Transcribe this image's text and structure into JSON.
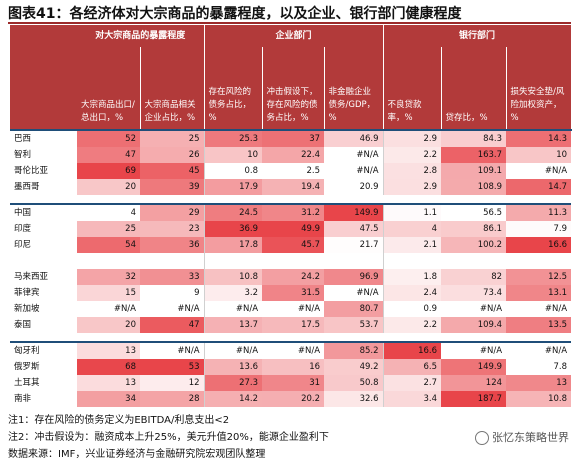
{
  "title": "图表41：各经济体对大宗商品的暴露程度，以及企业、银行部门健康程度",
  "groups": [
    {
      "label": "对大宗商品的暴露程度"
    },
    {
      "label": "企业部门"
    },
    {
      "label": "银行部门"
    }
  ],
  "columns": [
    "大宗商品出口/总出口，%",
    "大宗商品相关企业占比，%",
    "存在风险的债务占比，%",
    "冲击假设下，存在风险的债务占比，%",
    "非金融企业债务/GDP，%",
    "不良贷款率，%",
    "贷存比，%",
    "损失安全垫/风险加权资产，%"
  ],
  "sections": [
    {
      "rows": [
        {
          "name": "巴西",
          "values": [
            "52",
            "25",
            "25.3",
            "37",
            "46.9",
            "2.9",
            "84.3",
            "14.3"
          ]
        },
        {
          "name": "智利",
          "values": [
            "47",
            "26",
            "10",
            "22.4",
            "#N/A",
            "2.2",
            "163.7",
            "10"
          ]
        },
        {
          "name": "哥伦比亚",
          "values": [
            "69",
            "45",
            "0.8",
            "2.5",
            "#N/A",
            "2.8",
            "109.1",
            "#N/A"
          ]
        },
        {
          "name": "墨西哥",
          "values": [
            "20",
            "39",
            "17.9",
            "19.4",
            "20.9",
            "2.9",
            "108.9",
            "14.7"
          ]
        }
      ]
    },
    {
      "rows": [
        {
          "name": "中国",
          "values": [
            "4",
            "29",
            "24.5",
            "31.2",
            "149.9",
            "1.1",
            "56.5",
            "11.3"
          ]
        },
        {
          "name": "印度",
          "values": [
            "25",
            "23",
            "36.9",
            "49.9",
            "47.5",
            "4",
            "86.1",
            "7.9"
          ]
        },
        {
          "name": "印尼",
          "values": [
            "54",
            "36",
            "17.8",
            "45.7",
            "21.7",
            "2.1",
            "100.2",
            "16.6"
          ]
        },
        {
          "name": "",
          "values": [
            "",
            "",
            "",
            "",
            "",
            "",
            "",
            ""
          ]
        },
        {
          "name": "马来西亚",
          "values": [
            "32",
            "33",
            "10.8",
            "24.2",
            "96.9",
            "1.8",
            "82",
            "12.5"
          ]
        },
        {
          "name": "菲律宾",
          "values": [
            "15",
            "9",
            "3.2",
            "31.5",
            "#N/A",
            "2.4",
            "73.4",
            "13.1"
          ]
        },
        {
          "name": "新加坡",
          "values": [
            "#N/A",
            "#N/A",
            "#N/A",
            "#N/A",
            "80.7",
            "0.9",
            "#N/A",
            "#N/A"
          ]
        },
        {
          "name": "泰国",
          "values": [
            "20",
            "47",
            "13.7",
            "17.5",
            "53.7",
            "2.2",
            "109.4",
            "13.5"
          ]
        }
      ]
    },
    {
      "rows": [
        {
          "name": "匈牙利",
          "values": [
            "13",
            "#N/A",
            "#N/A",
            "#N/A",
            "85.2",
            "16.6",
            "#N/A",
            "#N/A"
          ]
        },
        {
          "name": "俄罗斯",
          "values": [
            "68",
            "53",
            "13.6",
            "16",
            "49.2",
            "6.5",
            "149.9",
            "7.8"
          ]
        },
        {
          "name": "土耳其",
          "values": [
            "13",
            "12",
            "27.3",
            "31",
            "50.8",
            "2.7",
            "124",
            "13"
          ]
        },
        {
          "name": "南非",
          "values": [
            "34",
            "28",
            "14.2",
            "20.2",
            "32.6",
            "3.4",
            "187.7",
            "10.8"
          ]
        }
      ]
    }
  ],
  "notes": [
    "注1：存在风险的债务定义为EBITDA/利息支出<2",
    "注2：冲击假设为：融资成本上升25%，美元升值20%，能源企业盈利下",
    "数据来源：IMF，兴业证券经济与金融研究院宏观团队整理"
  ],
  "watermark": "张忆东策略世界",
  "colors": {
    "header": "#b23a3a",
    "accent": "#9b2a2a",
    "separator": "#1f4e79",
    "heat_high": "#e8454a",
    "heat_low": "#fde4e4"
  }
}
